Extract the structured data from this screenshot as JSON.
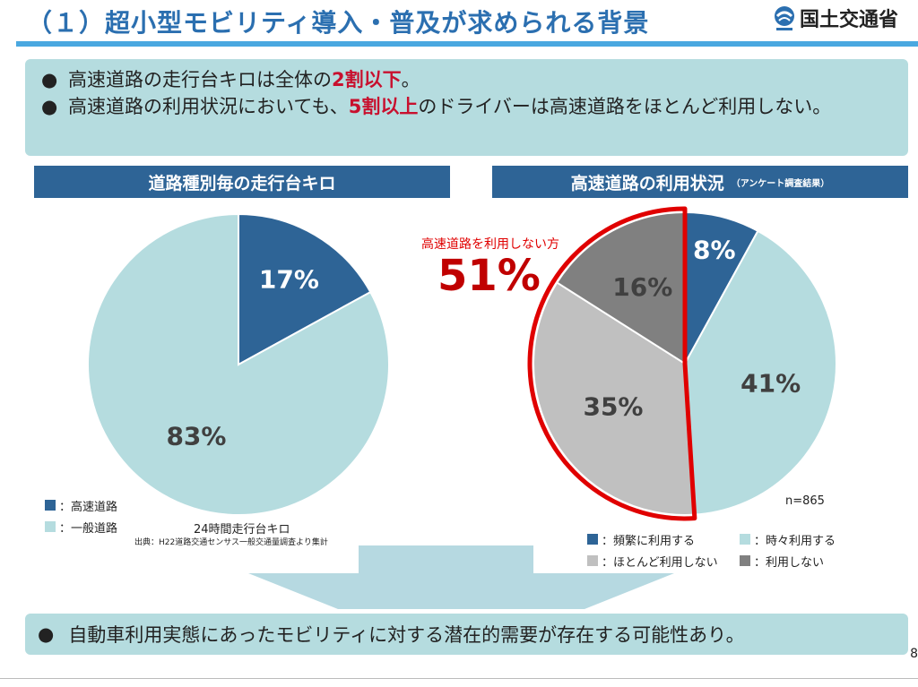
{
  "title": "（１）超小型モビリティ導入・普及が求められる背景",
  "logo": {
    "name": "国土交通省"
  },
  "summary": {
    "bullet": "●",
    "b1": {
      "pre": "高速道路の走行台キロは全体の",
      "em": "2割以下",
      "post": "。"
    },
    "b2": {
      "pre": "高速道路の利用状況においても、",
      "em": "5割以上",
      "post": "のドライバーは高速道路をほとんど利用しない。"
    }
  },
  "left_header": "道路種別毎の走行台キロ",
  "right_header": {
    "main": "高速道路の利用状況",
    "sub": "（アンケート調査結果）"
  },
  "left_legend": [
    {
      "label": "：高速道路",
      "color": "#2e6496"
    },
    {
      "label": "：一般道路",
      "color": "#b5dcdf"
    }
  ],
  "left_caption": "24時間走行台キロ",
  "left_source": "出典：H22道路交通センサス一般交通量調査より集計",
  "right_callout": {
    "label": "高速道路を利用しない方",
    "value": "51%"
  },
  "right_n": "n=865",
  "right_legend": [
    {
      "label": "：頻繁に利用する",
      "color": "#2e6496"
    },
    {
      "label": "：時々利用する",
      "color": "#b5dcdf"
    },
    {
      "label": "：ほとんど利用しない",
      "color": "#c0c0c0"
    },
    {
      "label": "：利用しない",
      "color": "#808080"
    }
  ],
  "conclusion": "自動車利用実態にあったモビリティに対する潜在的需要が存在する可能性あり。",
  "page_number": "8",
  "chart_data": [
    {
      "type": "pie",
      "title": "道路種別毎の走行台キロ",
      "categories": [
        "高速道路",
        "一般道路"
      ],
      "values": [
        17,
        83
      ],
      "labels": [
        "17%",
        "83%"
      ],
      "colors": [
        "#2e6496",
        "#b5dcdf"
      ],
      "label_colors": [
        "#ffffff",
        "#404040"
      ]
    },
    {
      "type": "pie",
      "title": "高速道路の利用状況",
      "categories": [
        "頻繁に利用する",
        "時々利用する",
        "ほとんど利用しない",
        "利用しない"
      ],
      "values": [
        8,
        41,
        35,
        16
      ],
      "labels": [
        "8%",
        "41%",
        "35%",
        "16%"
      ],
      "colors": [
        "#2e6496",
        "#b5dcdf",
        "#c0c0c0",
        "#808080"
      ],
      "label_colors": [
        "#ffffff",
        "#404040",
        "#404040",
        "#404040"
      ],
      "highlight": [
        "ほとんど利用しない",
        "利用しない"
      ],
      "highlight_color": "#e00000"
    }
  ]
}
